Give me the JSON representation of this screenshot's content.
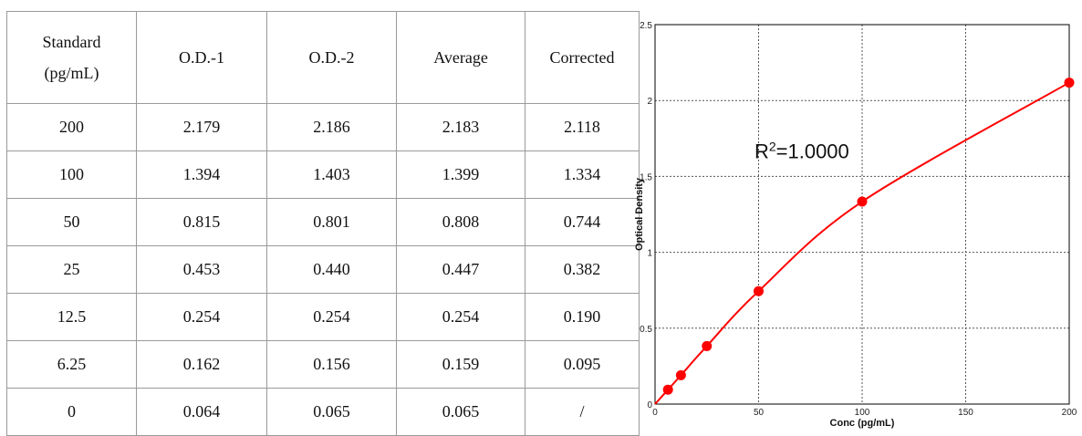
{
  "table": {
    "headers": [
      {
        "line1": "Standard",
        "line2": "(pg/mL)"
      },
      {
        "line1": "O.D.-1",
        "line2": ""
      },
      {
        "line1": "O.D.-2",
        "line2": ""
      },
      {
        "line1": "Average",
        "line2": ""
      },
      {
        "line1": "Corrected",
        "line2": ""
      }
    ],
    "rows": [
      [
        "200",
        "2.179",
        "2.186",
        "2.183",
        "2.118"
      ],
      [
        "100",
        "1.394",
        "1.403",
        "1.399",
        "1.334"
      ],
      [
        "50",
        "0.815",
        "0.801",
        "0.808",
        "0.744"
      ],
      [
        "25",
        "0.453",
        "0.440",
        "0.447",
        "0.382"
      ],
      [
        "12.5",
        "0.254",
        "0.254",
        "0.254",
        "0.190"
      ],
      [
        "6.25",
        "0.162",
        "0.156",
        "0.159",
        "0.095"
      ],
      [
        "0",
        "0.064",
        "0.065",
        "0.065",
        "/"
      ]
    ]
  },
  "chart_data": {
    "type": "scatter",
    "xlabel": "Conc (pg/mL)",
    "ylabel": "Optical Density",
    "xlim": [
      0,
      200
    ],
    "ylim": [
      0,
      2.5
    ],
    "xticks": [
      "0",
      "50",
      "100",
      "150",
      "200"
    ],
    "yticks": [
      "0",
      "0.5",
      "1",
      "1.5",
      "2",
      "2.5"
    ],
    "grid": true,
    "annotation": {
      "base": "R",
      "sup": "2",
      "rest": "=1.0000"
    },
    "series": [
      {
        "points": [
          {
            "x": 6.25,
            "y": 0.095
          },
          {
            "x": 12.5,
            "y": 0.19
          },
          {
            "x": 25,
            "y": 0.382
          },
          {
            "x": 50,
            "y": 0.744
          },
          {
            "x": 100,
            "y": 1.334
          },
          {
            "x": 200,
            "y": 2.118
          }
        ],
        "fit": "curve",
        "color": "#ff0000"
      }
    ]
  }
}
